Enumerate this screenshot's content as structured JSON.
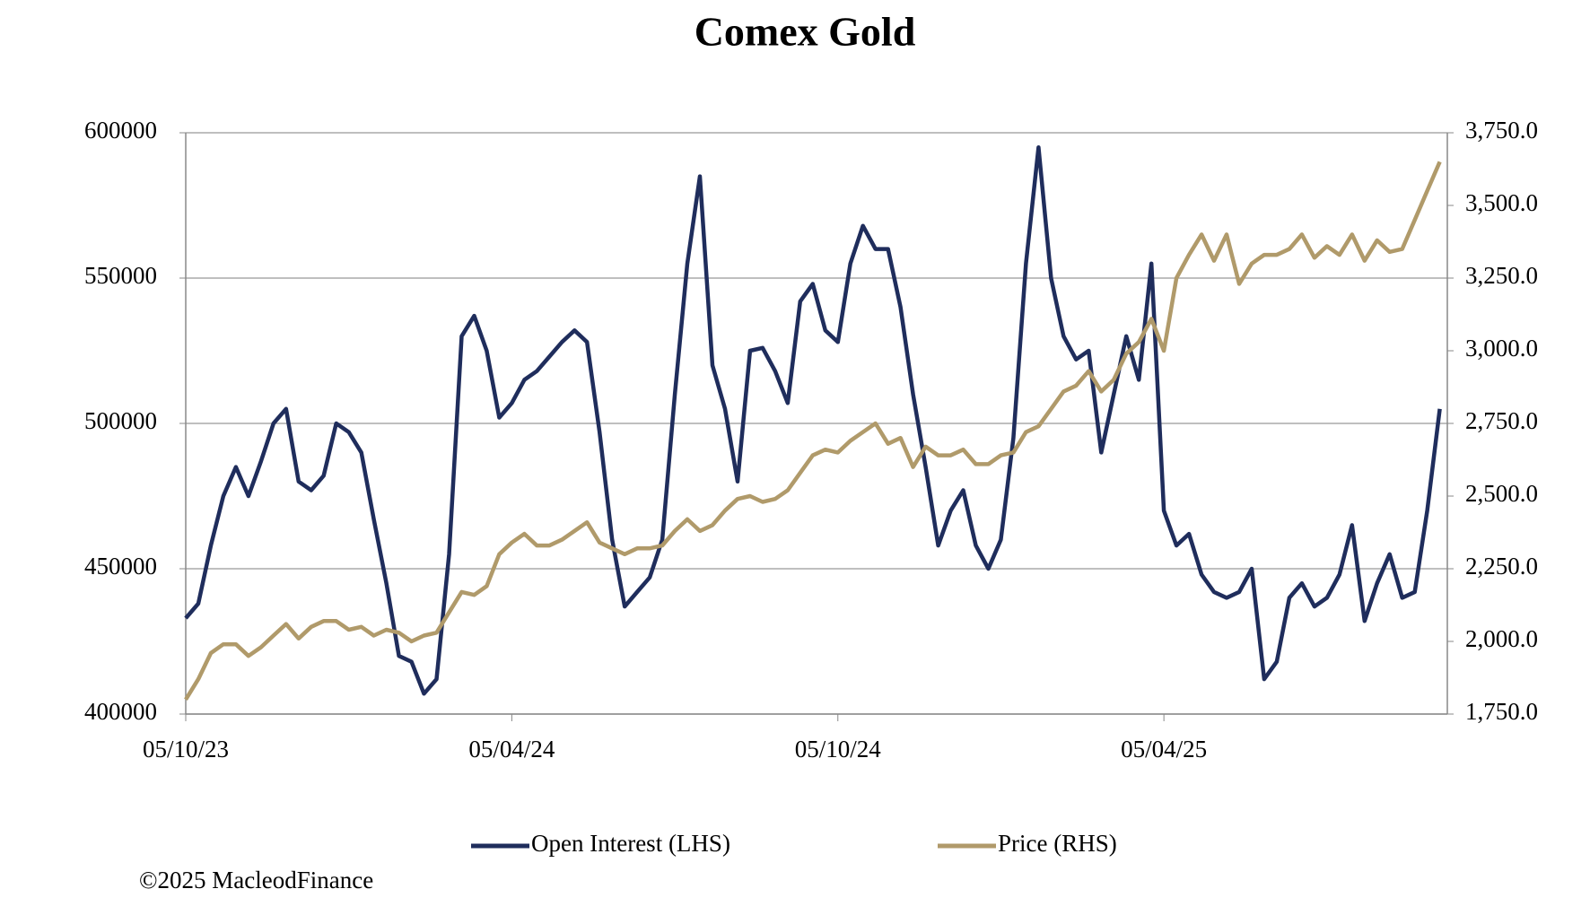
{
  "chart_data": {
    "type": "line",
    "title": "Comex Gold",
    "footer": "©2025 MacleodFinance",
    "categories": [
      "05/10/23",
      null,
      null,
      null,
      null,
      null,
      null,
      null,
      null,
      null,
      null,
      null,
      null,
      null,
      null,
      null,
      null,
      null,
      null,
      null,
      null,
      null,
      null,
      null,
      null,
      null,
      "05/04/24",
      null,
      null,
      null,
      null,
      null,
      null,
      null,
      null,
      null,
      null,
      null,
      null,
      null,
      null,
      null,
      null,
      null,
      null,
      null,
      null,
      null,
      null,
      null,
      null,
      null,
      "05/10/24",
      null,
      null,
      null,
      null,
      null,
      null,
      null,
      null,
      null,
      null,
      null,
      null,
      null,
      null,
      null,
      null,
      null,
      null,
      null,
      null,
      null,
      null,
      null,
      null,
      null,
      "05/04/25",
      null,
      null,
      null,
      null,
      null,
      null,
      null,
      null,
      null,
      null,
      null,
      null,
      null,
      null,
      null,
      null,
      null,
      null,
      null,
      null,
      null,
      null
    ],
    "series": [
      {
        "name": "Open Interest (LHS)",
        "color": "#1f2d5c",
        "axis": "y",
        "values": [
          433000,
          438000,
          458000,
          475000,
          485000,
          475000,
          487000,
          500000,
          505000,
          480000,
          477000,
          482000,
          500000,
          497000,
          490000,
          467000,
          445000,
          420000,
          418000,
          407000,
          412000,
          455000,
          530000,
          537000,
          525000,
          502000,
          507000,
          515000,
          518000,
          523000,
          528000,
          532000,
          528000,
          497000,
          460000,
          437000,
          442000,
          447000,
          460000,
          510000,
          555000,
          585000,
          520000,
          505000,
          480000,
          525000,
          526000,
          518000,
          507000,
          542000,
          548000,
          532000,
          528000,
          555000,
          568000,
          560000,
          560000,
          540000,
          510000,
          485000,
          458000,
          470000,
          477000,
          458000,
          450000,
          460000,
          495000,
          555000,
          595000,
          550000,
          530000,
          522000,
          525000,
          490000,
          510000,
          530000,
          515000,
          555000,
          470000,
          458000,
          462000,
          448000,
          442000,
          440000,
          442000,
          450000,
          412000,
          418000,
          440000,
          445000,
          437000,
          440000,
          448000,
          465000,
          432000,
          445000,
          455000,
          440000,
          442000,
          470000,
          505000
        ]
      },
      {
        "name": "Price (RHS)",
        "color": "#b09a6a",
        "axis": "y2",
        "values": [
          1800,
          1870,
          1960,
          1990,
          1990,
          1950,
          1980,
          2020,
          2060,
          2010,
          2050,
          2070,
          2070,
          2040,
          2050,
          2020,
          2040,
          2030,
          2000,
          2020,
          2030,
          2100,
          2170,
          2160,
          2190,
          2300,
          2340,
          2370,
          2330,
          2330,
          2350,
          2380,
          2410,
          2340,
          2320,
          2300,
          2320,
          2320,
          2330,
          2380,
          2420,
          2380,
          2400,
          2450,
          2490,
          2500,
          2480,
          2490,
          2520,
          2580,
          2640,
          2660,
          2650,
          2690,
          2720,
          2750,
          2680,
          2700,
          2600,
          2670,
          2640,
          2640,
          2660,
          2610,
          2610,
          2640,
          2650,
          2720,
          2740,
          2800,
          2860,
          2880,
          2930,
          2860,
          2900,
          2990,
          3030,
          3110,
          3000,
          3250,
          3330,
          3400,
          3310,
          3400,
          3230,
          3300,
          3330,
          3330,
          3350,
          3400,
          3320,
          3360,
          3330,
          3400,
          3310,
          3380,
          3340,
          3350,
          3450,
          3550,
          3650
        ]
      }
    ],
    "ylim": [
      400000,
      600000
    ],
    "yticks": [
      400000,
      450000,
      500000,
      550000,
      600000
    ],
    "y2lim": [
      1750,
      3750
    ],
    "y2ticks": [
      {
        "value": 1750,
        "label": "1,750.0"
      },
      {
        "value": 2000,
        "label": "2,000.0"
      },
      {
        "value": 2250,
        "label": "2,250.0"
      },
      {
        "value": 2500,
        "label": "2,500.0"
      },
      {
        "value": 2750,
        "label": "2,750.0"
      },
      {
        "value": 3000,
        "label": "3,000.0"
      },
      {
        "value": 3250,
        "label": "3,250.0"
      },
      {
        "value": 3500,
        "label": "3,500.0"
      },
      {
        "value": 3750,
        "label": "3,750.0"
      }
    ],
    "grid": true,
    "legend": "bottom"
  }
}
